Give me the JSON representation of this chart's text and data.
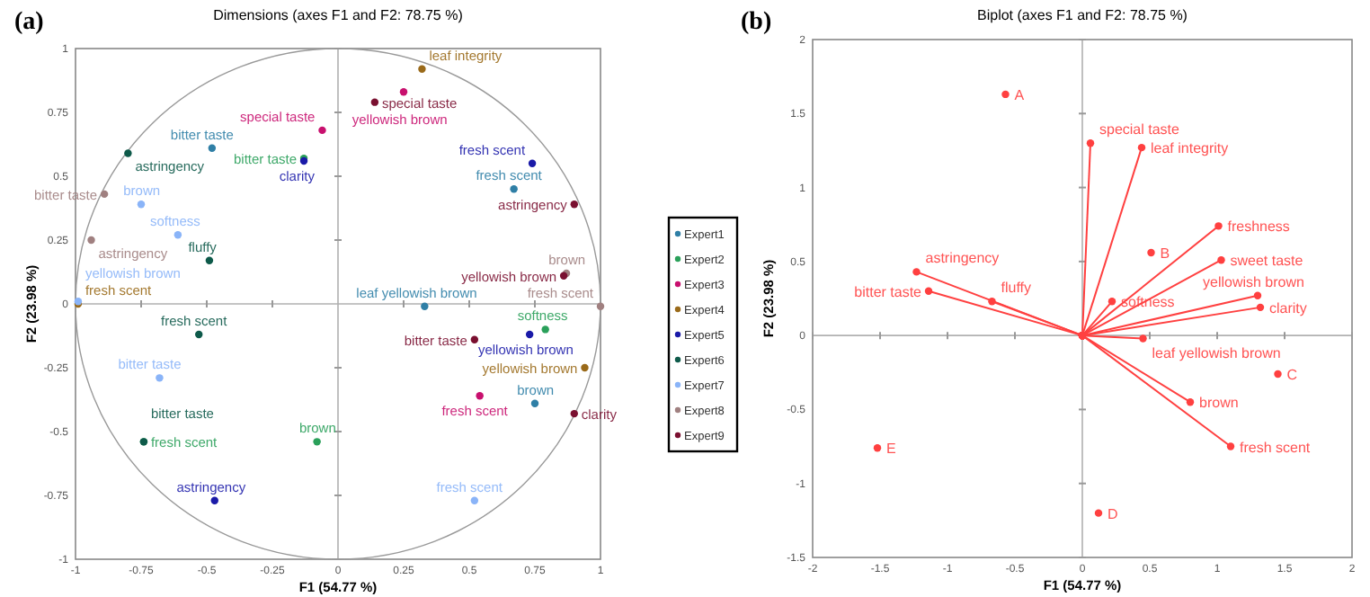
{
  "chart_data": [
    {
      "type": "scatter",
      "title": "Dimensions (axes F1 and F2: 78.75 %)",
      "xlabel": "F1 (54.77 %)",
      "ylabel": "F2 (23.98 %)",
      "xlim": [
        -1,
        1
      ],
      "ylim": [
        -1,
        1
      ],
      "xticks": [
        -1,
        -0.75,
        -0.5,
        -0.25,
        0,
        0.25,
        0.5,
        0.75,
        1
      ],
      "yticks": [
        -1,
        -0.75,
        -0.5,
        -0.25,
        0,
        0.25,
        0.5,
        0.75,
        1
      ],
      "legend": "right",
      "marker": "circle",
      "annotations": [
        "(a)"
      ],
      "series": [
        {
          "name": "Expert1",
          "color": "#2f7fa6",
          "x": [
            -0.48,
            0.67,
            0.33,
            0.75
          ],
          "values": [
            0.61,
            0.45,
            -0.01,
            -0.39
          ],
          "value_labels": [
            "bitter taste",
            "fresh scent",
            "leaf yellowish brown",
            "brown"
          ]
        },
        {
          "name": "Expert2",
          "color": "#2aa05a",
          "x": [
            -0.13,
            0.79,
            -0.74,
            -0.08
          ],
          "values": [
            0.57,
            -0.1,
            -0.54,
            -0.54
          ],
          "value_labels": [
            "bitter taste",
            "softness",
            "fresh scent",
            "brown"
          ]
        },
        {
          "name": "Expert3",
          "color": "#c8106e",
          "x": [
            -0.06,
            0.25,
            0.54
          ],
          "values": [
            0.68,
            0.83,
            -0.36
          ],
          "value_labels": [
            "special taste",
            "yellowish brown",
            "fresh scent"
          ]
        },
        {
          "name": "Expert4",
          "color": "#9a6a1a",
          "x": [
            0.32,
            -0.99,
            0.94
          ],
          "values": [
            0.92,
            0.0,
            -0.25
          ],
          "value_labels": [
            "leaf integrity",
            "fresh scent",
            "yellowish brown"
          ]
        },
        {
          "name": "Expert5",
          "color": "#1a1aa8",
          "x": [
            -0.13,
            0.74,
            0.73,
            -0.47
          ],
          "values": [
            0.56,
            0.55,
            -0.12,
            -0.77
          ],
          "value_labels": [
            "clarity",
            "fresh scent",
            "yellowish brown",
            "astringency"
          ]
        },
        {
          "name": "Expert6",
          "color": "#0e5a4a",
          "x": [
            -0.8,
            -0.49,
            -0.53,
            -0.74
          ],
          "values": [
            0.59,
            0.17,
            -0.12,
            -0.54
          ],
          "value_labels": [
            "astringency",
            "fluffy",
            "fresh scent",
            "bitter taste"
          ]
        },
        {
          "name": "Expert7",
          "color": "#8ab4f8",
          "x": [
            -0.75,
            -0.61,
            -0.99,
            -0.68,
            0.52
          ],
          "values": [
            0.39,
            0.27,
            0.01,
            -0.29,
            -0.77
          ],
          "value_labels": [
            "brown",
            "softness",
            "yellowish brown",
            "bitter taste",
            "fresh scent"
          ]
        },
        {
          "name": "Expert8",
          "color": "#a08080",
          "x": [
            -0.89,
            -0.94,
            0.87,
            1.0
          ],
          "values": [
            0.43,
            0.25,
            0.12,
            -0.01
          ],
          "value_labels": [
            "bitter taste",
            "astringency",
            "brown",
            "fresh scent"
          ]
        },
        {
          "name": "Expert9",
          "color": "#7a1030",
          "x": [
            0.14,
            0.9,
            0.86,
            0.52,
            0.9
          ],
          "values": [
            0.79,
            0.39,
            0.11,
            -0.14,
            -0.43
          ],
          "value_labels": [
            "special taste",
            "astringency",
            "yellowish brown",
            "bitter taste",
            "clarity"
          ]
        }
      ]
    },
    {
      "type": "scatter",
      "title": "Biplot (axes F1 and F2: 78.75 %)",
      "xlabel": "F1 (54.77 %)",
      "ylabel": "F2 (23.98 %)",
      "xlim": [
        -2,
        2
      ],
      "ylim": [
        -1.5,
        2
      ],
      "xticks": [
        -2,
        -1.5,
        -1,
        -0.5,
        0,
        0.5,
        1,
        1.5,
        2
      ],
      "yticks": [
        -1.5,
        -1,
        -0.5,
        0,
        0.5,
        1,
        1.5,
        2
      ],
      "marker": "circle",
      "annotations": [
        "(b)"
      ],
      "series": [
        {
          "type": "line",
          "color": "#ff4040",
          "x": [
            0,
            0.06
          ],
          "values": [
            0,
            1.3
          ],
          "value_labels": [
            null,
            "special taste"
          ]
        },
        {
          "type": "line",
          "color": "#ff4040",
          "x": [
            0,
            0.44
          ],
          "values": [
            0,
            1.27
          ],
          "value_labels": [
            null,
            "leaf integrity"
          ]
        },
        {
          "type": "line",
          "color": "#ff4040",
          "x": [
            0,
            1.01
          ],
          "values": [
            0,
            0.74
          ],
          "value_labels": [
            null,
            "freshness"
          ]
        },
        {
          "type": "line",
          "color": "#ff4040",
          "x": [
            0,
            1.03
          ],
          "values": [
            0,
            0.51
          ],
          "value_labels": [
            null,
            "sweet taste"
          ]
        },
        {
          "type": "line",
          "color": "#ff4040",
          "x": [
            0,
            -1.23
          ],
          "values": [
            0,
            0.43
          ],
          "value_labels": [
            null,
            "astringency"
          ]
        },
        {
          "type": "line",
          "color": "#ff4040",
          "x": [
            0,
            -1.14
          ],
          "values": [
            0,
            0.3
          ],
          "value_labels": [
            null,
            "bitter taste"
          ]
        },
        {
          "type": "line",
          "color": "#ff4040",
          "x": [
            0,
            -0.67
          ],
          "values": [
            0,
            0.23
          ],
          "value_labels": [
            null,
            "fluffy"
          ]
        },
        {
          "type": "line",
          "color": "#ff4040",
          "x": [
            0,
            0.22
          ],
          "values": [
            0,
            0.23
          ],
          "value_labels": [
            null,
            "softness"
          ]
        },
        {
          "type": "line",
          "color": "#ff4040",
          "x": [
            0,
            1.3
          ],
          "values": [
            0,
            0.27
          ],
          "value_labels": [
            null,
            "yellowish brown"
          ]
        },
        {
          "type": "line",
          "color": "#ff4040",
          "x": [
            0,
            1.32
          ],
          "values": [
            0,
            0.19
          ],
          "value_labels": [
            null,
            "clarity"
          ]
        },
        {
          "type": "line",
          "color": "#ff4040",
          "x": [
            0,
            0.45
          ],
          "values": [
            0,
            -0.02
          ],
          "value_labels": [
            null,
            "leaf yellowish brown"
          ]
        },
        {
          "type": "line",
          "color": "#ff4040",
          "x": [
            0,
            0.8
          ],
          "values": [
            0,
            -0.45
          ],
          "value_labels": [
            null,
            "brown"
          ]
        },
        {
          "type": "line",
          "color": "#ff4040",
          "x": [
            0,
            1.1
          ],
          "values": [
            0,
            -0.75
          ],
          "value_labels": [
            null,
            "fresh scent"
          ]
        },
        {
          "color": "#ff4040",
          "x": [
            -0.57,
            0.51,
            1.45,
            0.12,
            -1.52
          ],
          "values": [
            1.63,
            0.56,
            -0.26,
            -1.2,
            -0.76
          ],
          "value_labels": [
            "A",
            "B",
            "C",
            "D",
            "E"
          ]
        }
      ]
    }
  ]
}
